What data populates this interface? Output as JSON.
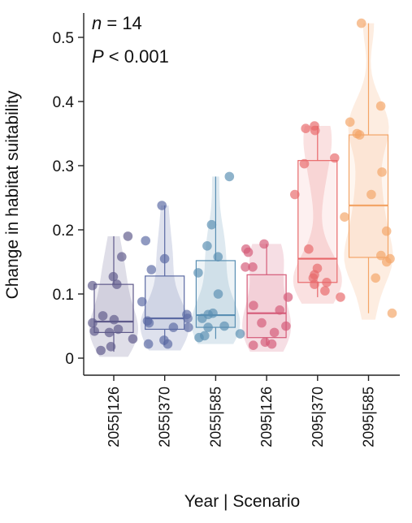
{
  "chart_data": {
    "type": "box",
    "xlabel": "Year | Scenario",
    "ylabel": "Change in habitat suitability",
    "ylim": [
      -0.03,
      0.54
    ],
    "yticks": [
      0,
      0.1,
      0.2,
      0.3,
      0.4,
      0.5
    ],
    "ytick_labels": [
      "0",
      "0.1",
      "0.2",
      "0.3",
      "0.4",
      "0.5"
    ],
    "annotations": [
      {
        "prefix": "",
        "italic": "n",
        "suffix": " = 14"
      },
      {
        "prefix": "",
        "italic": "P",
        "suffix": " < 0.001"
      }
    ],
    "grid": false,
    "categories": [
      "2055|126",
      "2055|370",
      "2055|585",
      "2095|126",
      "2095|370",
      "2095|585"
    ],
    "colors": [
      "#5f5a8a",
      "#5b6aa3",
      "#5a8fb3",
      "#d45a78",
      "#e8686a",
      "#f3a567"
    ],
    "boxes": [
      {
        "q1": 0.04,
        "median": 0.057,
        "q3": 0.115,
        "whisker_low": 0.01,
        "whisker_high": 0.19
      },
      {
        "q1": 0.045,
        "median": 0.062,
        "q3": 0.128,
        "whisker_low": 0.02,
        "whisker_high": 0.238
      },
      {
        "q1": 0.048,
        "median": 0.067,
        "q3": 0.152,
        "whisker_low": 0.03,
        "whisker_high": 0.283
      },
      {
        "q1": 0.032,
        "median": 0.07,
        "q3": 0.13,
        "whisker_low": 0.02,
        "whisker_high": 0.178
      },
      {
        "q1": 0.118,
        "median": 0.155,
        "q3": 0.308,
        "whisker_low": 0.095,
        "whisker_high": 0.362
      },
      {
        "q1": 0.157,
        "median": 0.238,
        "q3": 0.348,
        "whisker_low": 0.07,
        "whisker_high": 0.522
      }
    ],
    "points": [
      [
        0.127,
        0.115,
        0.042,
        0.012,
        0.018,
        0.06,
        0.055,
        0.03,
        0.045,
        0.04,
        0.066,
        0.19,
        0.158,
        0.113
      ],
      [
        0.155,
        0.138,
        0.048,
        0.058,
        0.022,
        0.028,
        0.022,
        0.088,
        0.068,
        0.048,
        0.183,
        0.238,
        0.062,
        0.055
      ],
      [
        0.208,
        0.1,
        0.05,
        0.035,
        0.032,
        0.038,
        0.07,
        0.062,
        0.158,
        0.175,
        0.133,
        0.283,
        0.068,
        0.048
      ],
      [
        0.142,
        0.095,
        0.082,
        0.05,
        0.025,
        0.02,
        0.022,
        0.055,
        0.075,
        0.04,
        0.165,
        0.142,
        0.178,
        0.17
      ],
      [
        0.255,
        0.125,
        0.118,
        0.105,
        0.095,
        0.17,
        0.115,
        0.14,
        0.13,
        0.312,
        0.355,
        0.362,
        0.358,
        0.303
      ],
      [
        0.393,
        0.368,
        0.35,
        0.29,
        0.198,
        0.07,
        0.155,
        0.15,
        0.16,
        0.125,
        0.255,
        0.22,
        0.348,
        0.522
      ]
    ]
  }
}
